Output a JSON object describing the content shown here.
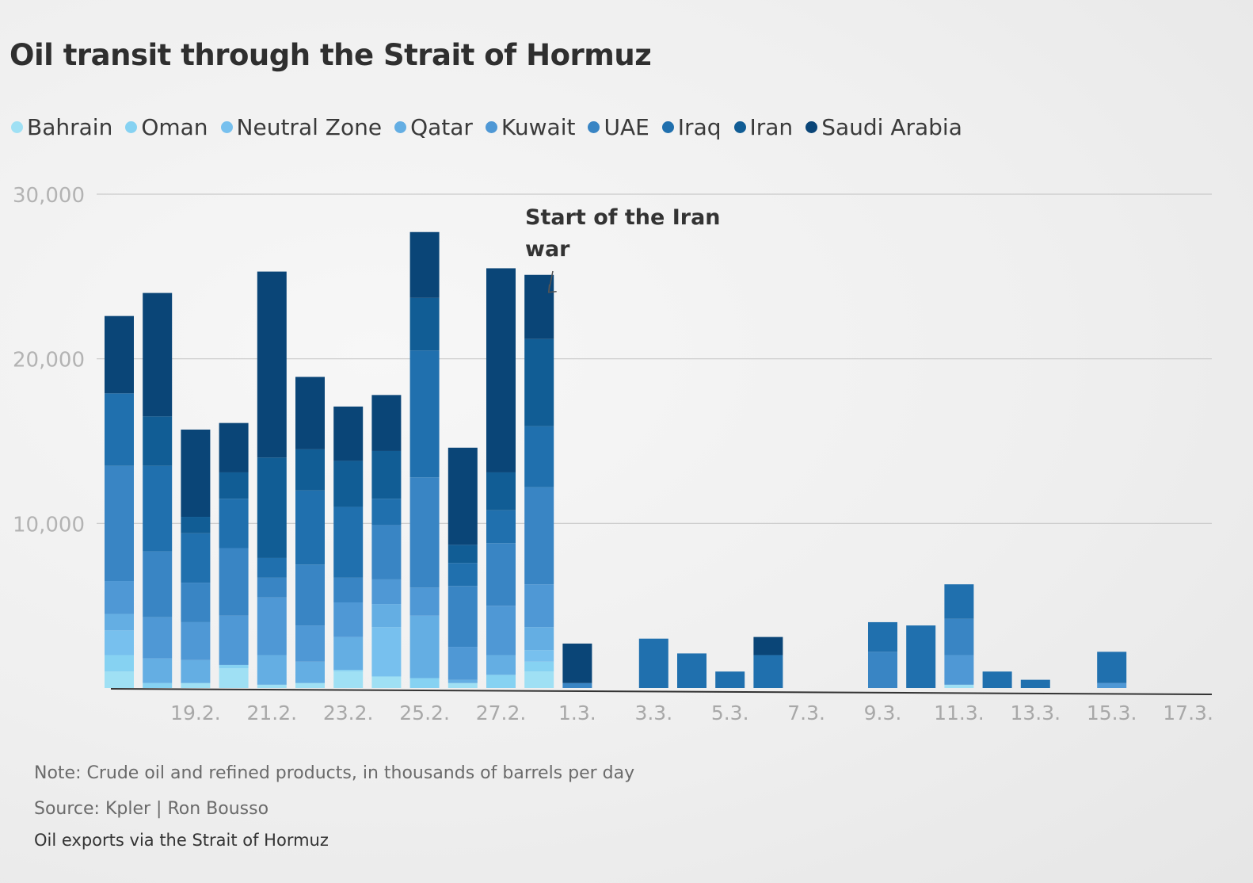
{
  "page": {
    "title": "Oil transit through the Strait of Hormuz",
    "note": "Note: Crude oil and refined products, in thousands of barrels per day",
    "source": "Source: Kpler | Ron Bousso",
    "caption": "Oil exports via the Strait of Hormuz"
  },
  "chart_data": {
    "type": "bar",
    "stacked": true,
    "title": "Oil transit through the Strait of Hormuz",
    "ylim": [
      0,
      30000
    ],
    "yticks": [
      10000,
      20000,
      30000
    ],
    "ytick_labels": [
      "10,000",
      "20,000",
      "30,000"
    ],
    "grid": true,
    "legend_position": "top",
    "categories": [
      "17.2.",
      "18.2.",
      "19.2.",
      "20.2.",
      "21.2.",
      "22.2.",
      "23.2.",
      "24.2.",
      "25.2.",
      "26.2.",
      "27.2.",
      "28.2.",
      "1.3.",
      "2.3.",
      "3.3.",
      "4.3.",
      "5.3.",
      "6.3.",
      "7.3.",
      "8.3.",
      "9.3.",
      "10.3.",
      "11.3.",
      "12.3.",
      "13.3.",
      "14.3.",
      "15.3.",
      "16.3.",
      "17.3."
    ],
    "xtick_labels": [
      "19.2.",
      "21.2.",
      "23.2.",
      "25.2.",
      "27.2.",
      "1.3.",
      "3.3.",
      "5.3.",
      "7.3.",
      "9.3.",
      "11.3.",
      "13.3.",
      "15.3.",
      "17.3."
    ],
    "series": [
      {
        "name": "Bahrain",
        "color": "#9fe0f4",
        "values": [
          1000,
          0,
          300,
          1200,
          200,
          300,
          1000,
          700,
          0,
          300,
          0,
          1000,
          0,
          0,
          0,
          0,
          0,
          0,
          0,
          0,
          0,
          0,
          200,
          0,
          0,
          0,
          0,
          0,
          0
        ]
      },
      {
        "name": "Oman",
        "color": "#86d2f2",
        "values": [
          1000,
          300,
          0,
          200,
          0,
          0,
          100,
          0,
          600,
          0,
          800,
          600,
          0,
          0,
          0,
          0,
          0,
          0,
          0,
          0,
          0,
          0,
          0,
          0,
          0,
          0,
          0,
          0,
          0
        ]
      },
      {
        "name": "Neutral Zone",
        "color": "#77c0ee",
        "values": [
          1500,
          0,
          0,
          0,
          0,
          0,
          0,
          3000,
          0,
          0,
          0,
          700,
          0,
          0,
          0,
          0,
          0,
          0,
          0,
          0,
          0,
          0,
          0,
          0,
          0,
          0,
          0,
          0,
          0
        ]
      },
      {
        "name": "Qatar",
        "color": "#64aee3",
        "values": [
          1000,
          1500,
          1400,
          0,
          1800,
          1300,
          2000,
          1400,
          3800,
          200,
          1200,
          1400,
          0,
          0,
          0,
          0,
          0,
          0,
          0,
          0,
          0,
          0,
          0,
          0,
          0,
          0,
          0,
          0,
          0
        ]
      },
      {
        "name": "Kuwait",
        "color": "#4f98d5",
        "values": [
          2000,
          2500,
          2300,
          3000,
          3500,
          2200,
          2100,
          1500,
          1700,
          2000,
          3000,
          2600,
          0,
          0,
          0,
          0,
          0,
          0,
          0,
          0,
          0,
          0,
          1800,
          0,
          0,
          0,
          300,
          0,
          0
        ]
      },
      {
        "name": "UAE",
        "color": "#3985c4",
        "values": [
          7000,
          4000,
          2400,
          4100,
          1200,
          3700,
          1500,
          3300,
          6700,
          3700,
          3800,
          5900,
          300,
          0,
          0,
          0,
          0,
          0,
          0,
          0,
          2200,
          0,
          2200,
          0,
          0,
          0,
          0,
          0,
          0
        ]
      },
      {
        "name": "Iraq",
        "color": "#2070ae",
        "values": [
          4400,
          5200,
          3000,
          3000,
          1200,
          4500,
          4300,
          1600,
          7700,
          1400,
          2000,
          3700,
          0,
          0,
          3000,
          2100,
          1000,
          2000,
          0,
          0,
          1800,
          3800,
          2100,
          1000,
          500,
          0,
          1900,
          0,
          0
        ]
      },
      {
        "name": "Iran",
        "color": "#115d95",
        "values": [
          0,
          3000,
          1000,
          1600,
          6100,
          2500,
          2800,
          2900,
          3200,
          1100,
          2300,
          5300,
          0,
          0,
          0,
          0,
          0,
          0,
          0,
          0,
          0,
          0,
          0,
          0,
          0,
          0,
          0,
          0,
          0
        ]
      },
      {
        "name": "Saudi Arabia",
        "color": "#0a4577",
        "values": [
          4700,
          7500,
          5300,
          3000,
          11300,
          4400,
          3300,
          3400,
          4000,
          5900,
          12400,
          3900,
          2400,
          0,
          0,
          0,
          0,
          1100,
          0,
          0,
          0,
          0,
          0,
          0,
          0,
          0,
          0,
          0,
          0
        ]
      }
    ],
    "annotations": [
      {
        "text": "Start of the Iran war",
        "target_category": "28.2."
      }
    ]
  }
}
